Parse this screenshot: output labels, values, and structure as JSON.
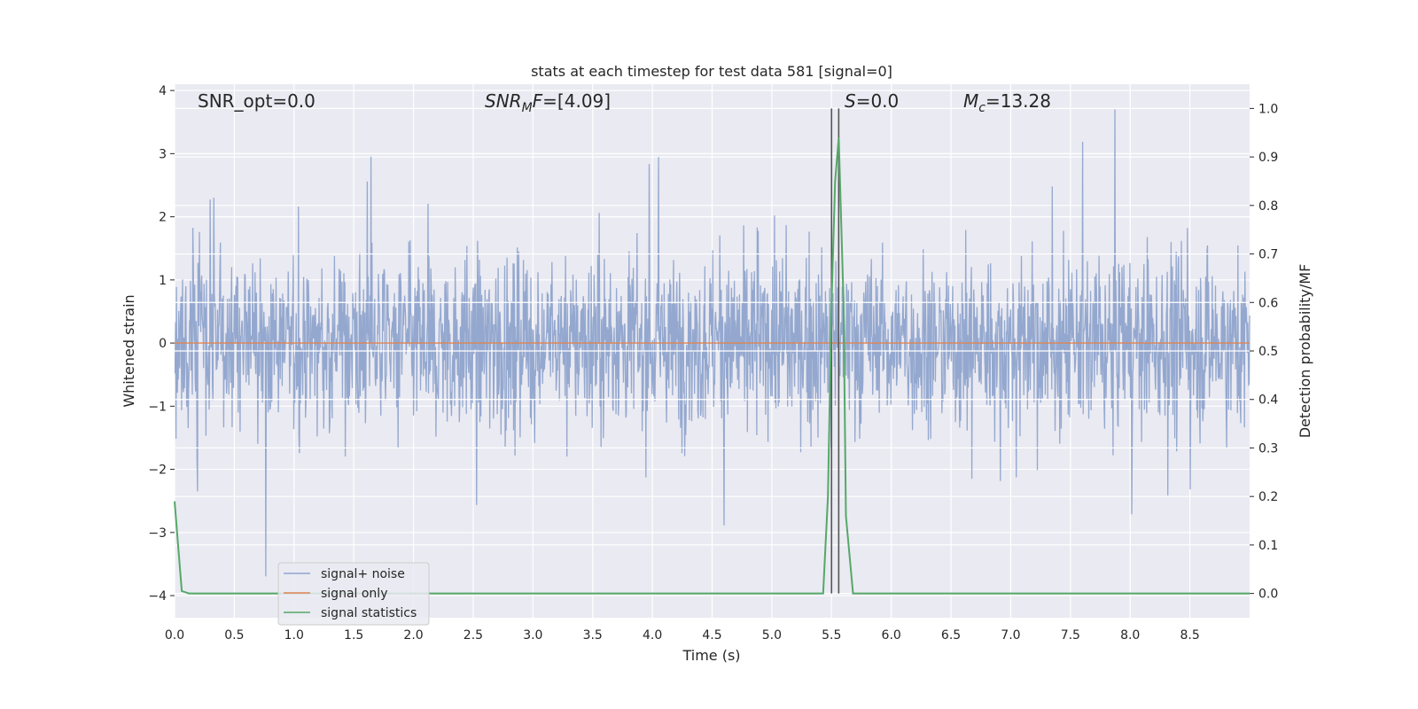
{
  "chart_data": {
    "type": "line",
    "title": "stats at each timestep for test data 581 [signal=0]",
    "xlabel": "Time (s)",
    "ylabel_left": "Whitened strain",
    "ylabel_right": "Detection probability/MF",
    "xlim": [
      0.0,
      9.0
    ],
    "ylim_left": [
      -4.35,
      4.1
    ],
    "ylim_right": [
      -0.05,
      1.05
    ],
    "xticks": [
      "0.0",
      "0.5",
      "1.0",
      "1.5",
      "2.0",
      "2.5",
      "3.0",
      "3.5",
      "4.0",
      "4.5",
      "5.0",
      "5.5",
      "6.0",
      "6.5",
      "7.0",
      "7.5",
      "8.0",
      "8.5"
    ],
    "yticks_left": [
      "4",
      "3",
      "2",
      "1",
      "0",
      "−1",
      "−2",
      "−3",
      "−4"
    ],
    "yticks_right": [
      "1.0",
      "0.9",
      "0.8",
      "0.7",
      "0.6",
      "0.5",
      "0.4",
      "0.3",
      "0.2",
      "0.1",
      "0.0"
    ],
    "grid": true,
    "legend_position": "bottom-left",
    "annotations": {
      "snr_opt": "SNR_opt=0.0",
      "snr_mf_main": "SNR",
      "snr_mf_sub": "M",
      "snr_mf_rest": "F=[4.09]",
      "s_main": "S",
      "s_rest": "=0.0",
      "mc_main": "M",
      "mc_sub": "c",
      "mc_rest": "=13.28"
    },
    "vertical_lines_x": [
      5.5,
      5.56
    ],
    "series": [
      {
        "name": "signal+ noise",
        "color": "#8fa4cc",
        "description_amplitude": "whitened noise, typical peak ~ ±2.2, extremes ~ +3.7 / −4.0"
      },
      {
        "name": "signal only",
        "color": "#dd8452",
        "values_constant": 0.0
      },
      {
        "name": "signal statistics",
        "color": "#55a868",
        "axis": "right",
        "x": [
          0.0,
          0.06,
          0.12,
          0.2,
          5.0,
          5.43,
          5.47,
          5.5,
          5.53,
          5.56,
          5.6,
          5.62,
          5.68,
          6.0,
          9.0
        ],
        "y": [
          0.19,
          0.005,
          0.0,
          0.0,
          0.0,
          0.0,
          0.2,
          0.6,
          0.85,
          0.94,
          0.6,
          0.16,
          0.0,
          0.0,
          0.0
        ]
      }
    ]
  },
  "colors": {
    "plot_background": "#eaeaf2",
    "grid": "#ffffff",
    "noise": "#8fa4cc",
    "signal": "#dd8452",
    "stats": "#55a868",
    "vline": "#555555"
  }
}
